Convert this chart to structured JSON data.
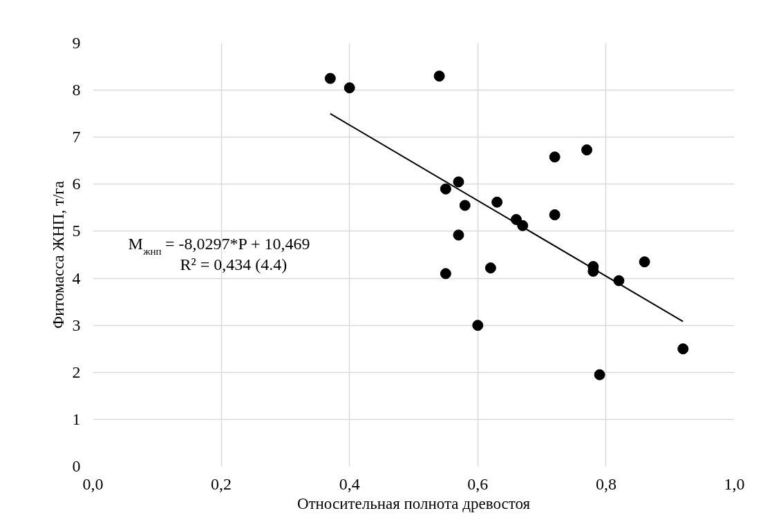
{
  "chart_data": {
    "type": "scatter",
    "xlabel": "Относительная полнота древостоя",
    "ylabel": "Фитомасса ЖНП, т/га",
    "annotations": [
      "M$_{жнп}$ = -8,0297*P + 10,469",
      "R² = 0,434   (4.4)"
    ],
    "x": [
      0.37,
      0.4,
      0.54,
      0.55,
      0.57,
      0.58,
      0.57,
      0.55,
      0.6,
      0.62,
      0.63,
      0.66,
      0.67,
      0.72,
      0.72,
      0.77,
      0.78,
      0.78,
      0.79,
      0.82,
      0.86,
      0.92
    ],
    "series": [
      {
        "color": "#000000",
        "marker": "circle",
        "values": [
          8.25,
          8.05,
          8.3,
          5.9,
          6.05,
          5.55,
          4.92,
          4.1,
          3.0,
          4.22,
          5.62,
          5.25,
          5.12,
          6.58,
          5.35,
          6.73,
          4.25,
          4.15,
          1.95,
          3.95,
          4.35,
          2.5
        ]
      },
      {
        "type": "line",
        "color": "#000000",
        "x": [
          0.37,
          0.92
        ],
        "values": [
          7.5,
          3.08
        ],
        "line_style": "solid"
      }
    ],
    "xlim": [
      0,
      1.0
    ],
    "ylim": [
      0,
      9
    ],
    "xticks": [
      {
        "value": 0,
        "label": "0,0"
      },
      {
        "value": 0.2,
        "label": "0,2"
      },
      {
        "value": 0.4,
        "label": "0,4"
      },
      {
        "value": 0.6,
        "label": "0,6"
      },
      {
        "value": 0.8,
        "label": "0,8"
      },
      {
        "value": 1.0,
        "label": "1,0"
      }
    ],
    "yticks": [
      0,
      1,
      2,
      3,
      4,
      5,
      6,
      7,
      8,
      9
    ],
    "grid": true
  }
}
